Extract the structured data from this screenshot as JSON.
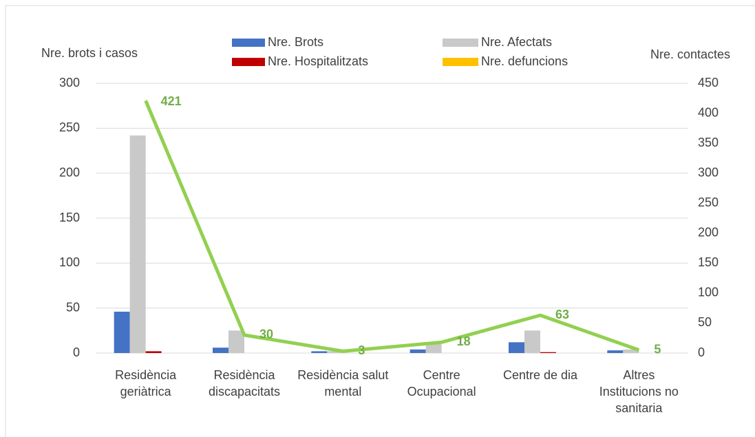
{
  "chart_data": {
    "type": "bar",
    "y_label": "Nre. brots i casos",
    "y2_label": "Nre. contactes",
    "categories": [
      "Residència geriàtrica",
      "Residència discapacitats",
      "Residència salut mental",
      "Centre Ocupacional",
      "Centre de dia",
      "Altres Institucions no sanitaria"
    ],
    "series": [
      {
        "name": "Nre. Brots",
        "color": "#4472c4",
        "values": [
          46,
          6,
          2,
          4,
          12,
          3
        ]
      },
      {
        "name": "Nre. Afectats",
        "color": "#c9c9c9",
        "values": [
          242,
          25,
          2,
          10,
          25,
          4
        ]
      },
      {
        "name": "Nre. Hospitalitzats",
        "color": "#c00000",
        "values": [
          2,
          0,
          0,
          0,
          1,
          0
        ]
      },
      {
        "name": "Nre. defuncions",
        "color": "#ffc000",
        "values": [
          0,
          0,
          0,
          0,
          0,
          0
        ]
      },
      {
        "name": "Nre. contactes",
        "type": "line",
        "axis": "y2",
        "color": "#92d050",
        "values": [
          421,
          30,
          3,
          18,
          63,
          5
        ],
        "show_values": true,
        "in_legend": false
      }
    ],
    "ylim": [
      0,
      300
    ],
    "yticks": [
      0,
      50,
      100,
      150,
      200,
      250,
      300
    ],
    "y2lim": [
      0,
      450
    ],
    "y2ticks": [
      0,
      50,
      100,
      150,
      200,
      250,
      300,
      350,
      400,
      450
    ],
    "grid": true
  }
}
